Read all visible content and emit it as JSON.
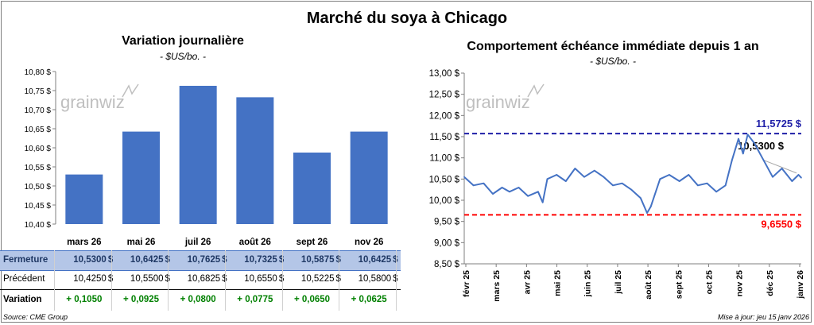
{
  "title": "Marché du soya à Chicago",
  "left": {
    "subtitle": "Variation journalière",
    "unit": "- $US/bo. -",
    "watermark": "grainwiz",
    "table": {
      "fermeture_label": "Fermeture",
      "precedent_label": "Précédent",
      "variation_label": "Variation",
      "currency": "$",
      "fermeture": [
        "10,5300",
        "10,6425",
        "10,7625",
        "10,7325",
        "10,5875",
        "10,6425"
      ],
      "precedent": [
        "10,4250",
        "10,5500",
        "10,6825",
        "10,6550",
        "10,5225",
        "10,5800"
      ],
      "variation": [
        "+ 0,1050",
        "+ 0,0925",
        "+ 0,0800",
        "+ 0,0775",
        "+ 0,0650",
        "+ 0,0625"
      ]
    }
  },
  "right": {
    "subtitle": "Comportement échéance immédiate depuis 1 an",
    "unit": "- $US/bo. -",
    "watermark": "grainwiz",
    "max_label": "11,5725 $",
    "min_label": "9,6550 $",
    "last_label": "10,5300 $"
  },
  "footer": {
    "source": "Source: CME Group",
    "updated": "Mise à jour: jeu 15 janv 2026"
  },
  "colors": {
    "bar": "#4472c4",
    "line": "#4472c4",
    "max_line": "#1f1fa8",
    "min_line": "#ff0000",
    "positive": "#008000",
    "header_fill": "#b4c6e7"
  },
  "chart_data": [
    {
      "type": "bar",
      "title": "Variation journalière",
      "categories": [
        "mars 26",
        "mai 26",
        "juil 26",
        "août 26",
        "sept 26",
        "nov 26"
      ],
      "values": [
        10.53,
        10.6425,
        10.7625,
        10.7325,
        10.5875,
        10.6425
      ],
      "ylim": [
        10.4,
        10.8
      ],
      "yticks": [
        "10,40 $",
        "10,45 $",
        "10,50 $",
        "10,55 $",
        "10,60 $",
        "10,65 $",
        "10,70 $",
        "10,75 $",
        "10,80 $"
      ],
      "grid": false
    },
    {
      "type": "line",
      "title": "Comportement échéance immédiate depuis 1 an",
      "ylim": [
        8.5,
        13.0
      ],
      "yticks": [
        "8,50 $",
        "9,00 $",
        "9,50 $",
        "10,00 $",
        "10,50 $",
        "11,00 $",
        "11,50 $",
        "12,00 $",
        "12,50 $",
        "13,00 $"
      ],
      "xticks": [
        "févr 25",
        "mars 25",
        "avr 25",
        "mai 25",
        "juin 25",
        "juil 25",
        "août 25",
        "sept 25",
        "oct 25",
        "nov 25",
        "déc 25",
        "janv 26"
      ],
      "max": 11.5725,
      "min": 9.655,
      "last": 10.53,
      "x": [
        "2025-01-15",
        "2025-01-25",
        "2025-02-05",
        "2025-02-15",
        "2025-02-25",
        "2025-03-05",
        "2025-03-15",
        "2025-03-25",
        "2025-04-05",
        "2025-04-10",
        "2025-04-15",
        "2025-04-25",
        "2025-05-05",
        "2025-05-15",
        "2025-05-25",
        "2025-06-05",
        "2025-06-15",
        "2025-06-25",
        "2025-07-05",
        "2025-07-15",
        "2025-07-25",
        "2025-08-01",
        "2025-08-05",
        "2025-08-15",
        "2025-08-25",
        "2025-09-05",
        "2025-09-15",
        "2025-09-25",
        "2025-10-05",
        "2025-10-15",
        "2025-10-25",
        "2025-11-01",
        "2025-11-08",
        "2025-11-13",
        "2025-11-18",
        "2025-11-25",
        "2025-12-05",
        "2025-12-15",
        "2025-12-25",
        "2026-01-05",
        "2026-01-12",
        "2026-01-15"
      ],
      "y": [
        10.55,
        10.35,
        10.4,
        10.15,
        10.3,
        10.2,
        10.3,
        10.1,
        10.2,
        9.95,
        10.5,
        10.6,
        10.45,
        10.75,
        10.55,
        10.7,
        10.55,
        10.35,
        10.4,
        10.25,
        10.05,
        9.7,
        9.85,
        10.5,
        10.6,
        10.45,
        10.6,
        10.35,
        10.4,
        10.2,
        10.35,
        10.95,
        11.45,
        11.1,
        11.55,
        11.35,
        10.95,
        10.55,
        10.75,
        10.45,
        10.6,
        10.53
      ],
      "series": [
        {
          "values": [
            10.55,
            10.35,
            10.4,
            10.15,
            10.3,
            10.2,
            10.3,
            10.1,
            10.2,
            9.95,
            10.5,
            10.6,
            10.45,
            10.75,
            10.55,
            10.7,
            10.55,
            10.35,
            10.4,
            10.25,
            10.05,
            9.7,
            9.85,
            10.5,
            10.6,
            10.45,
            10.6,
            10.35,
            10.4,
            10.2,
            10.35,
            10.95,
            11.45,
            11.1,
            11.55,
            11.35,
            10.95,
            10.55,
            10.75,
            10.45,
            10.6,
            10.53
          ]
        }
      ]
    }
  ]
}
